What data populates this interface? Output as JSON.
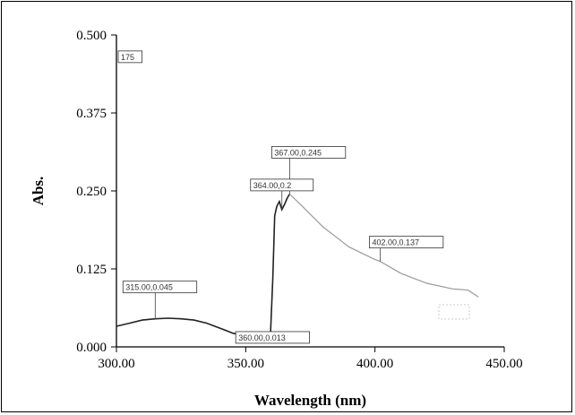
{
  "chart_data": {
    "type": "line",
    "xlabel": "Wavelength (nm)",
    "ylabel": "Abs.",
    "xlim": [
      300,
      450
    ],
    "ylim": [
      0,
      0.5
    ],
    "x_ticks": [
      "300.00",
      "350.00",
      "400.00",
      "450.00"
    ],
    "y_ticks": [
      "0.000",
      "0.125",
      "0.250",
      "0.375",
      "0.500"
    ],
    "grid": false,
    "legend": "none",
    "colors": {
      "line": "#222222",
      "faded_line": "#9a9a9a",
      "axis": "#000000"
    },
    "series": [
      {
        "points": [
          [
            300,
            0.033
          ],
          [
            305,
            0.038
          ],
          [
            310,
            0.043
          ],
          [
            315,
            0.045
          ],
          [
            320,
            0.046
          ],
          [
            325,
            0.045
          ],
          [
            330,
            0.043
          ],
          [
            335,
            0.038
          ],
          [
            340,
            0.03
          ],
          [
            345,
            0.022
          ],
          [
            350,
            0.017
          ],
          [
            355,
            0.014
          ],
          [
            359.5,
            0.013
          ],
          [
            360.5,
            0.11
          ],
          [
            361.2,
            0.21
          ],
          [
            362,
            0.225
          ],
          [
            363,
            0.233
          ],
          [
            364,
            0.22
          ],
          [
            365,
            0.228
          ],
          [
            366,
            0.238
          ],
          [
            367,
            0.245
          ],
          [
            372,
            0.225
          ],
          [
            380,
            0.192
          ],
          [
            390,
            0.16
          ],
          [
            400,
            0.14
          ],
          [
            402,
            0.137
          ],
          [
            410,
            0.118
          ],
          [
            420,
            0.102
          ],
          [
            430,
            0.093
          ],
          [
            436,
            0.091
          ],
          [
            440,
            0.08
          ]
        ]
      }
    ],
    "peak_labels": [
      {
        "text": "315.00,0.045",
        "x": 315.0,
        "y": 0.045
      },
      {
        "text": "360.00,0.013",
        "x": 360.0,
        "y": 0.013
      },
      {
        "text": "367.00,0.245",
        "x": 367.0,
        "y": 0.245
      },
      {
        "text": "364.00,0.2",
        "x": 364.0,
        "y": 0.22
      },
      {
        "text": "402.00,0.137",
        "x": 402.0,
        "y": 0.137
      },
      {
        "text": "175",
        "x": 300.0,
        "y": 0.46
      }
    ]
  }
}
